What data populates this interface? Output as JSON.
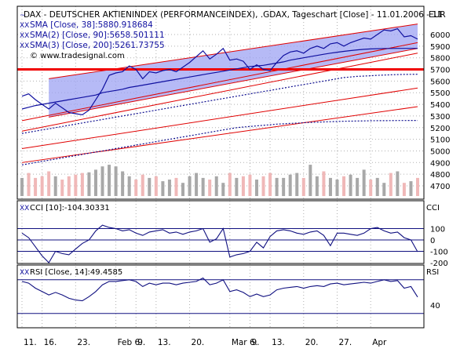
{
  "colors": {
    "price": "#1010a0",
    "channel_fill": "#9ea3f3",
    "channel_line": "#e00000",
    "hline": "#f00000",
    "sma_dotted": "#101090",
    "vol_up": "#a8a8a8",
    "vol_down": "#f0b8b8",
    "osc": "#101080",
    "grid": "#b0b0b0",
    "axis": "#000000"
  },
  "chart_data": {
    "type": "line",
    "title": "DAX - DEUTSCHER AKTIENINDEX (PERFORMANCEINDEX), .GDAX, Tageschart [Close] - 11.01.2006 - 11",
    "unit": "EUR",
    "watermark": "© www.tradesignal.com",
    "legend": [
      "SMA [Close, 38]:5880.918684",
      "SMA(2) [Close, 90]:5658.501111",
      "SMA(3) [Close, 200]:5261.73755"
    ],
    "x_tick_labels": [
      "11.",
      "16.",
      "23.",
      "Feb 6.",
      "9.",
      "13.",
      "20.",
      "Mar 6.",
      "9.",
      "13.",
      "20.",
      "27.",
      "Apr"
    ],
    "price": {
      "ylim": [
        4600,
        6100
      ],
      "y_ticks": [
        4700,
        4800,
        4900,
        5000,
        5100,
        5200,
        5300,
        5400,
        5500,
        5600,
        5700,
        5800,
        5900,
        6000
      ],
      "n_bars": 60,
      "close": [
        5470,
        5490,
        5440,
        5400,
        5360,
        5410,
        5370,
        5330,
        5320,
        5310,
        5350,
        5440,
        5530,
        5650,
        5670,
        5680,
        5730,
        5700,
        5620,
        5680,
        5670,
        5690,
        5700,
        5680,
        5720,
        5760,
        5810,
        5860,
        5790,
        5830,
        5880,
        5780,
        5790,
        5770,
        5700,
        5740,
        5700,
        5690,
        5760,
        5820,
        5850,
        5860,
        5840,
        5880,
        5900,
        5880,
        5920,
        5930,
        5900,
        5930,
        5950,
        5970,
        5960,
        6000,
        6040,
        6030,
        6050,
        5980,
        5990,
        5960
      ],
      "sma_38": [
        5360,
        5375,
        5390,
        5400,
        5410,
        5420,
        5430,
        5440,
        5450,
        5460,
        5470,
        5480,
        5500,
        5510,
        5520,
        5530,
        5545,
        5555,
        5565,
        5575,
        5585,
        5595,
        5605,
        5615,
        5625,
        5635,
        5645,
        5655,
        5665,
        5675,
        5685,
        5695,
        5705,
        5715,
        5725,
        5730,
        5735,
        5745,
        5755,
        5765,
        5780,
        5790,
        5800,
        5810,
        5820,
        5830,
        5840,
        5848,
        5855,
        5862,
        5868,
        5873,
        5876,
        5878,
        5880,
        5880,
        5881,
        5881,
        5881,
        5881
      ],
      "sma_90": [
        5150,
        5160,
        5170,
        5180,
        5190,
        5200,
        5210,
        5220,
        5230,
        5240,
        5250,
        5260,
        5270,
        5280,
        5290,
        5300,
        5310,
        5320,
        5330,
        5340,
        5350,
        5360,
        5370,
        5380,
        5390,
        5400,
        5410,
        5420,
        5430,
        5440,
        5450,
        5460,
        5470,
        5480,
        5490,
        5500,
        5510,
        5520,
        5530,
        5540,
        5550,
        5560,
        5570,
        5580,
        5590,
        5600,
        5610,
        5620,
        5630,
        5635,
        5640,
        5643,
        5646,
        5649,
        5652,
        5654,
        5656,
        5657,
        5658,
        5658.5
      ],
      "sma_200": [
        4880,
        4890,
        4900,
        4910,
        4920,
        4930,
        4940,
        4950,
        4960,
        4970,
        4980,
        4990,
        5000,
        5010,
        5020,
        5030,
        5040,
        5050,
        5060,
        5070,
        5080,
        5090,
        5100,
        5110,
        5120,
        5130,
        5140,
        5150,
        5160,
        5170,
        5180,
        5190,
        5200,
        5205,
        5210,
        5215,
        5220,
        5225,
        5230,
        5233,
        5236,
        5239,
        5242,
        5245,
        5247,
        5249,
        5251,
        5253,
        5255,
        5256,
        5257,
        5258,
        5259,
        5259.5,
        5260,
        5260.5,
        5261,
        5261.3,
        5261.5,
        5261.7
      ],
      "channel_upper": [
        [
          4,
          5620
        ],
        [
          59,
          6090
        ]
      ],
      "channel_lower": [
        [
          4,
          5290
        ],
        [
          59,
          5880
        ]
      ],
      "trend_lines": [
        {
          "from": [
            0,
            5260
          ],
          "to": [
            59,
            5930
          ]
        },
        {
          "from": [
            0,
            5170
          ],
          "to": [
            59,
            5840
          ]
        },
        {
          "from": [
            0,
            5020
          ],
          "to": [
            59,
            5540
          ]
        },
        {
          "from": [
            0,
            4900
          ],
          "to": [
            59,
            5380
          ]
        }
      ],
      "horizontal_line": 5700,
      "volume": [
        55,
        70,
        55,
        60,
        75,
        60,
        50,
        60,
        65,
        70,
        72,
        80,
        90,
        95,
        90,
        75,
        60,
        50,
        65,
        55,
        60,
        45,
        50,
        55,
        40,
        60,
        70,
        55,
        50,
        60,
        40,
        70,
        55,
        60,
        65,
        50,
        60,
        70,
        55,
        55,
        65,
        70,
        55,
        95,
        60,
        75,
        55,
        50,
        60,
        65,
        55,
        80,
        50,
        55,
        40,
        70,
        75,
        40,
        45,
        55
      ],
      "volume_down": [
        false,
        true,
        true,
        true,
        true,
        false,
        true,
        true,
        true,
        true,
        false,
        false,
        false,
        false,
        false,
        false,
        false,
        true,
        true,
        false,
        true,
        false,
        false,
        true,
        false,
        false,
        false,
        false,
        true,
        false,
        false,
        true,
        false,
        true,
        true,
        false,
        true,
        true,
        false,
        false,
        false,
        false,
        true,
        false,
        false,
        true,
        false,
        false,
        true,
        false,
        false,
        false,
        true,
        false,
        false,
        true,
        false,
        true,
        false,
        true
      ]
    },
    "cci": {
      "label": "CCI [10]:-104.30331",
      "axis_label": "CCI",
      "ylim": [
        -250,
        260
      ],
      "y_ticks": [
        -200,
        -100,
        0,
        100
      ],
      "y_tick_labels": [
        "-200",
        "-100",
        "0",
        "100"
      ],
      "h_lines": [
        100,
        0,
        -100
      ],
      "values": [
        60,
        20,
        -60,
        -140,
        -200,
        -100,
        -120,
        -130,
        -80,
        -30,
        0,
        80,
        130,
        110,
        100,
        80,
        90,
        60,
        40,
        70,
        80,
        90,
        60,
        70,
        50,
        70,
        80,
        100,
        -20,
        10,
        100,
        -150,
        -130,
        -120,
        -100,
        -20,
        -70,
        30,
        80,
        90,
        80,
        60,
        50,
        70,
        80,
        40,
        -50,
        60,
        60,
        50,
        40,
        60,
        100,
        110,
        80,
        60,
        70,
        20,
        0,
        -104
      ]
    },
    "rsi": {
      "label": "RSI [Close, 14]:49.4585",
      "axis_label": "RSI",
      "ylim": [
        20,
        80
      ],
      "y_ticks": [
        40
      ],
      "y_tick_labels": [
        "40"
      ],
      "h_lines": [
        70,
        30
      ],
      "values": [
        68,
        66,
        60,
        56,
        52,
        55,
        52,
        48,
        46,
        45,
        50,
        56,
        64,
        68,
        68,
        69,
        70,
        68,
        62,
        66,
        64,
        66,
        66,
        64,
        66,
        67,
        68,
        72,
        64,
        66,
        70,
        56,
        58,
        55,
        50,
        53,
        50,
        52,
        58,
        60,
        61,
        62,
        60,
        62,
        63,
        62,
        65,
        66,
        64,
        65,
        66,
        67,
        66,
        68,
        70,
        68,
        69,
        60,
        62,
        49.5
      ]
    }
  }
}
